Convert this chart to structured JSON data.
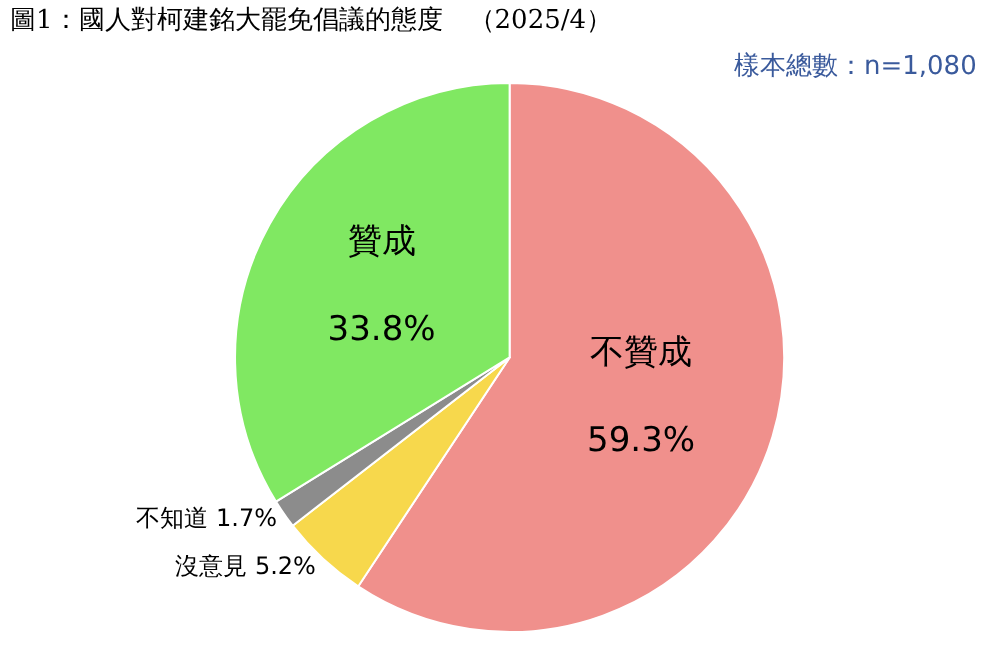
{
  "chart_data": {
    "type": "pie",
    "title": "圖1：國人對柯建銘大罷免倡議的態度　（2025/4）",
    "categories": [
      "不贊成",
      "沒意見",
      "不知道",
      "贊成"
    ],
    "values": [
      59.3,
      5.2,
      1.7,
      33.8
    ],
    "value_labels": [
      "59.3%",
      "5.2%",
      "1.7%",
      "33.8%"
    ],
    "colors": [
      "#f0908c",
      "#f7d84c",
      "#8c8c8c",
      "#80e862"
    ],
    "annotations": [
      "樣本總數：n=1,080"
    ],
    "legend": false
  }
}
